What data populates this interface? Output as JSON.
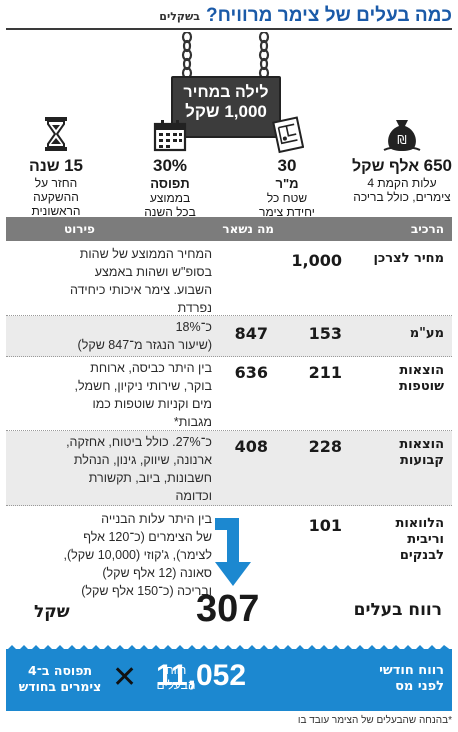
{
  "header": {
    "title": "כמה בעלים של צימר מרוויח?",
    "unit": "בשקלים"
  },
  "sign": {
    "line1": "לילה במחיר",
    "line2": "1,000 שקל"
  },
  "stats": [
    {
      "icon": "money-bag-icon",
      "big_num": "650",
      "big_text": " אלף שקל",
      "sub": [
        "עלות הקמת 4",
        "צימרים, כולל בריכה"
      ]
    },
    {
      "icon": "blueprint-icon",
      "big_num": "30",
      "big_text": "",
      "big_line2": "מ\"ר",
      "sub": [
        "שטח כל",
        "יחידת צימר"
      ]
    },
    {
      "icon": "calendar-icon",
      "big_num": "30%",
      "big_text": "",
      "big_line2": "תפוסה",
      "sub": [
        "בממוצע",
        "בכל השנה"
      ]
    },
    {
      "icon": "hourglass-icon",
      "big_num": "15",
      "big_text": " שנה",
      "sub": [
        "החזר על",
        "ההשקעה",
        "הראשונית"
      ]
    }
  ],
  "table": {
    "headers": {
      "component": "הרכיב",
      "remaining": "מה נשאר",
      "detail": "פירוט"
    },
    "rows": [
      {
        "label": "מחיר לצרכן",
        "num": "1,000",
        "remaining": "",
        "detail": [
          "המחיר הממוצע של שהות",
          "בסופ\"ש ושהות באמצע",
          "השבוע. צימר איכותי כיחידה",
          "נפרדת"
        ]
      },
      {
        "label": "מע\"מ",
        "num": "153",
        "remaining": "847",
        "detail": [
          "כ־18%",
          "(שיעור הנגזר מ־847 שקל)"
        ]
      },
      {
        "label": "הוצאות שוטפות",
        "num": "211",
        "remaining": "636",
        "detail": [
          "בין היתר כביסה, ארוחת",
          "בוקר, שירותי ניקיון, חשמל,",
          "מים וקניות שוטפות כמו",
          "מגבות*"
        ]
      },
      {
        "label": "הוצאות קבועות",
        "num": "228",
        "remaining": "408",
        "detail": [
          "כ־27%. כולל ביטוח, אחזקה,",
          "ארנונה, שיווק, גינון, הנהלת",
          "חשבונות, ביוב, תקשורת",
          "וכדומה"
        ]
      },
      {
        "label": "הלוואות וריבית לבנקים",
        "num": "101",
        "remaining": "",
        "detail": [
          "בין היתר עלות הבנייה",
          "של הצימרים (כ־120 אלף",
          "לצימר), ג'קוזי (10,000 שקל),",
          "סאונה (12 אלף שקל)",
          "ובריכה (כ־150 אלף שקל)"
        ]
      }
    ]
  },
  "profit": {
    "label": "רווח בעלים",
    "value": "307",
    "unit": "שקל"
  },
  "monthly": {
    "label_line1": "רווח חודשי",
    "label_line2": "לפני מס",
    "value": "11,052",
    "small_line1": "רווח",
    "small_line2": "הבעלים",
    "target_line1": "תפוסה ב־4",
    "target_line2": "צימרים בחודש"
  },
  "note": "*בהנחה שהבעלים של הצימר עובד בו",
  "colors": {
    "accent": "#1c88d0",
    "title": "#1a5aa8",
    "header_bar": "#7c7c7c",
    "sign": "#3c3c3c"
  }
}
